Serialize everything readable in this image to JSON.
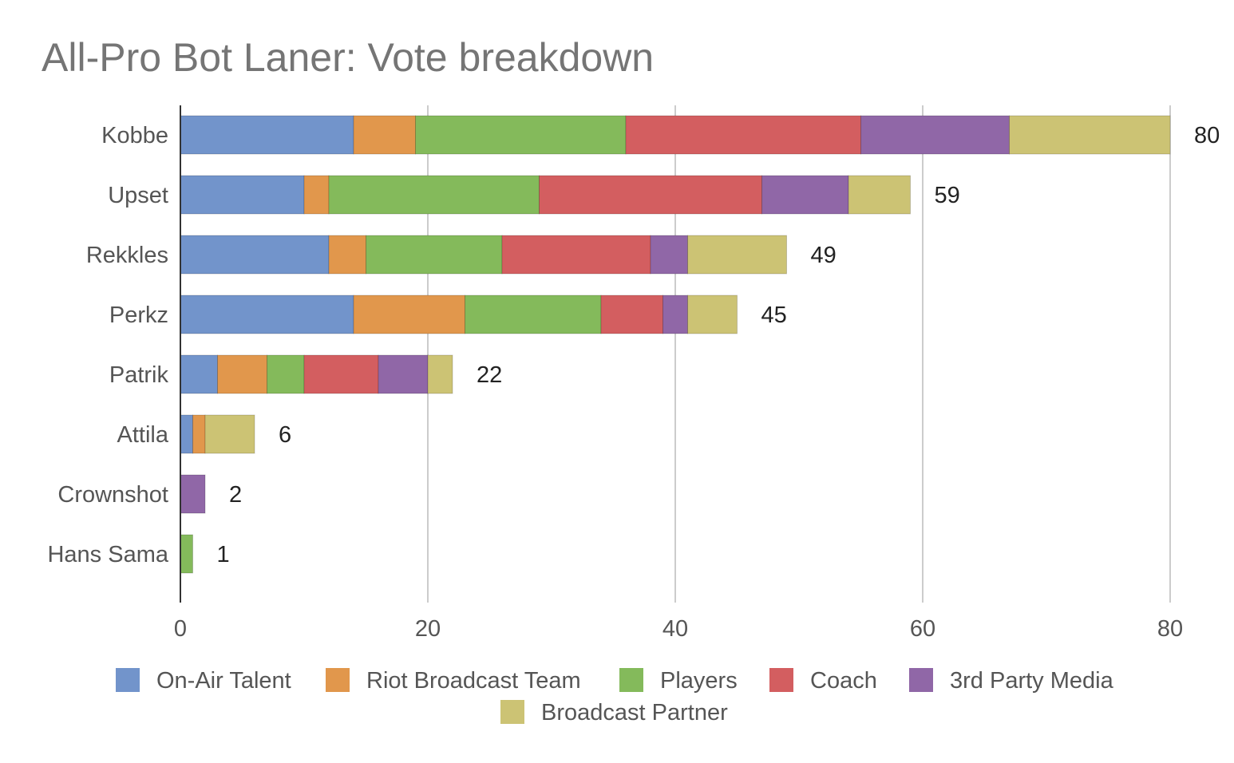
{
  "chart_data": {
    "type": "bar",
    "orientation": "horizontal",
    "stacked": true,
    "title": "All-Pro Bot Laner: Vote breakdown",
    "xlabel": "",
    "ylabel": "",
    "xlim": [
      0,
      80
    ],
    "xticks": [
      0,
      20,
      40,
      60,
      80
    ],
    "grid": true,
    "legend_position": "bottom",
    "categories": [
      "Kobbe",
      "Upset",
      "Rekkles",
      "Perkz",
      "Patrik",
      "Attila",
      "Crownshot",
      "Hans Sama"
    ],
    "series": [
      {
        "name": "On-Air Talent",
        "color": "#7294cb",
        "values": [
          14,
          10,
          12,
          14,
          3,
          1,
          0,
          0
        ]
      },
      {
        "name": "Riot Broadcast Team",
        "color": "#e1974c",
        "values": [
          5,
          2,
          3,
          9,
          4,
          1,
          0,
          0
        ]
      },
      {
        "name": "Players",
        "color": "#84ba5b",
        "values": [
          17,
          17,
          11,
          11,
          3,
          0,
          0,
          1
        ]
      },
      {
        "name": "Coach",
        "color": "#d35e60",
        "values": [
          19,
          18,
          12,
          5,
          6,
          0,
          0,
          0
        ]
      },
      {
        "name": "3rd Party Media",
        "color": "#9067a7",
        "values": [
          12,
          7,
          3,
          2,
          4,
          0,
          2,
          0
        ]
      },
      {
        "name": "Broadcast Partner",
        "color": "#ccc374",
        "values": [
          13,
          5,
          8,
          4,
          2,
          4,
          0,
          0
        ]
      }
    ],
    "totals": [
      80,
      59,
      49,
      45,
      22,
      6,
      2,
      1
    ]
  }
}
